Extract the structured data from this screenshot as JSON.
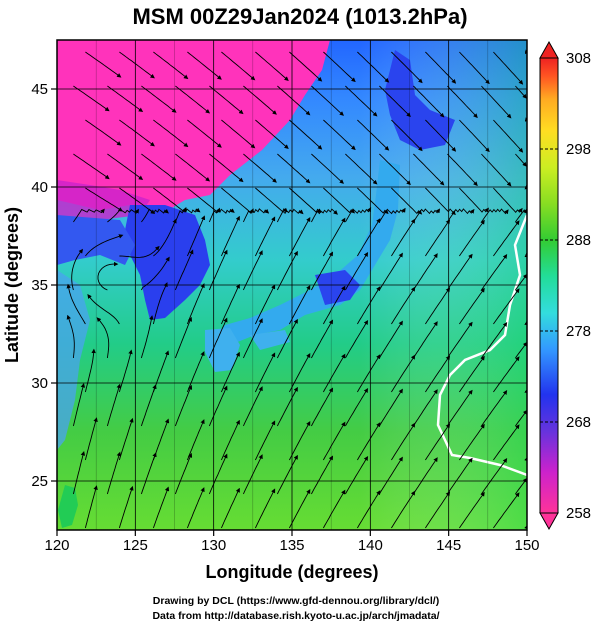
{
  "title": "MSM 00Z29Jan2024 (1013.2hPa)",
  "map": {
    "lon_range": [
      120,
      150
    ],
    "lat_range": [
      22.5,
      47.5
    ],
    "xlabel": "Longitude (degrees)",
    "ylabel": "Latitude  (degrees)",
    "x_ticks": [
      "120",
      "125",
      "130",
      "135",
      "140",
      "145",
      "150"
    ],
    "y_ticks": [
      "25",
      "30",
      "35",
      "40",
      "45"
    ],
    "grid": true,
    "field": "temperature",
    "overlay": "wind streamlines"
  },
  "colorbar": {
    "range": [
      258,
      308
    ],
    "tick_labels": [
      "308",
      "298",
      "288",
      "278",
      "268",
      "258"
    ],
    "colors": [
      "#ff3399",
      "#cc22cc",
      "#6633dd",
      "#2233ee",
      "#3399ff",
      "#33dddd",
      "#22dd99",
      "#33cc33",
      "#88dd22",
      "#ccee22",
      "#ffdd22",
      "#ffaa22",
      "#ff5522",
      "#ee2222"
    ]
  },
  "credits": {
    "line1": "Drawing by DCL (https://www.gfd-dennou.org/library/dcl/)",
    "line2": "Data from http://database.rish.kyoto-u.ac.jp/arch/jmadata/"
  }
}
